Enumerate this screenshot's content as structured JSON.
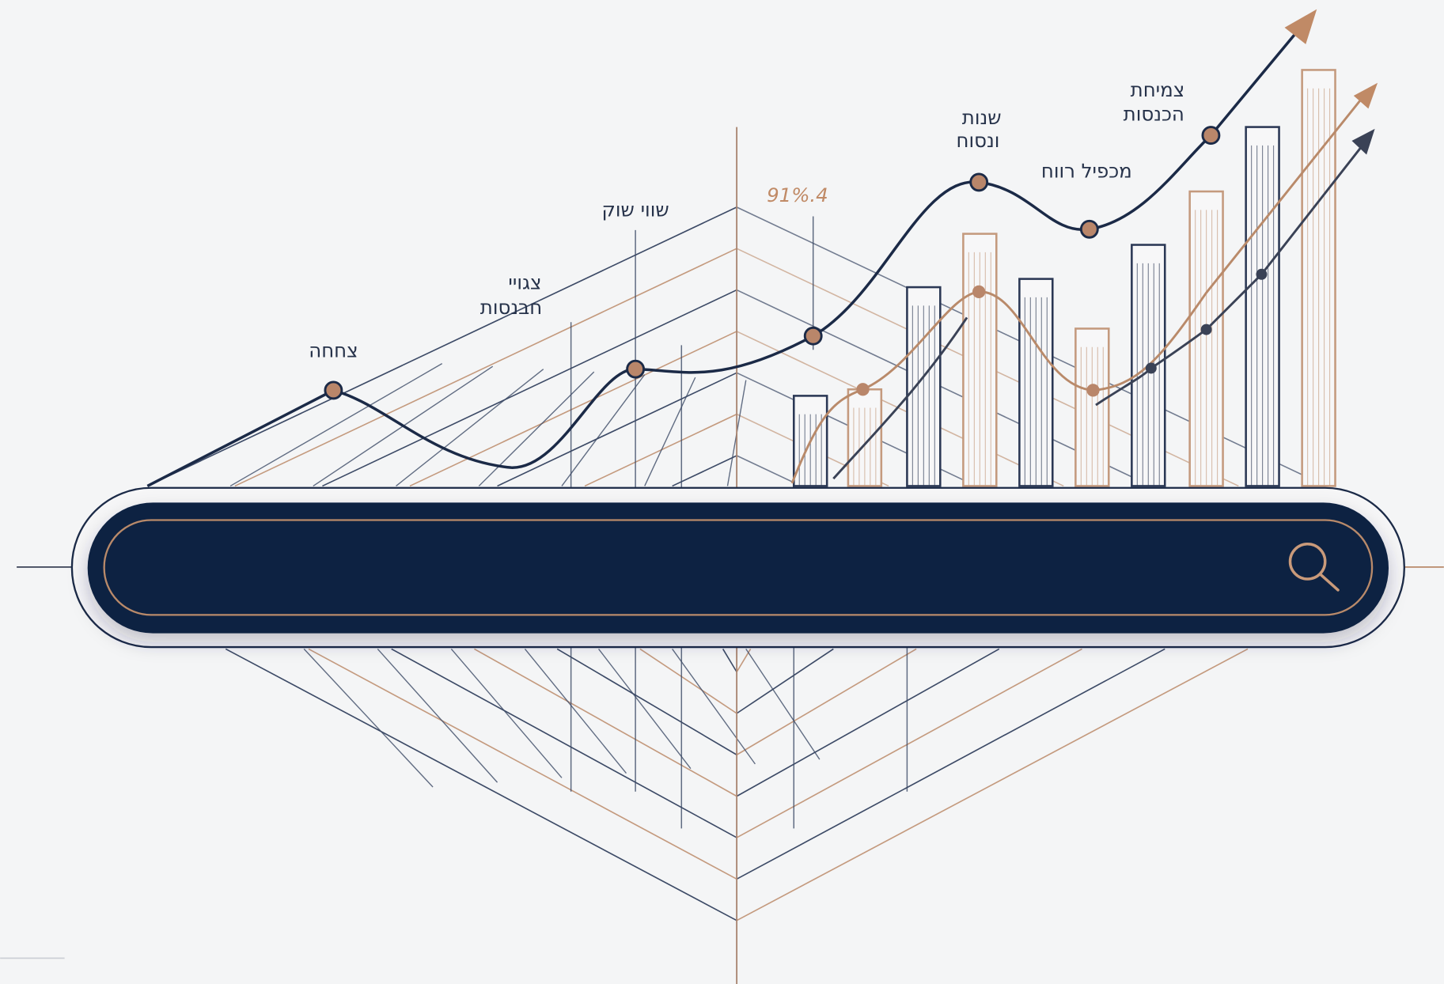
{
  "labels": {
    "growth_small": "צחחה",
    "revenue_forecast": [
      "צגויי",
      "חבנסות"
    ],
    "market_value": "שווי שוק",
    "percent": "91%.4",
    "yearly": [
      "שנות",
      "ונסוח"
    ],
    "pe_ratio": "מכפיל רווח",
    "revenue_growth": [
      "צמיחת",
      "הכנסות"
    ]
  }
}
